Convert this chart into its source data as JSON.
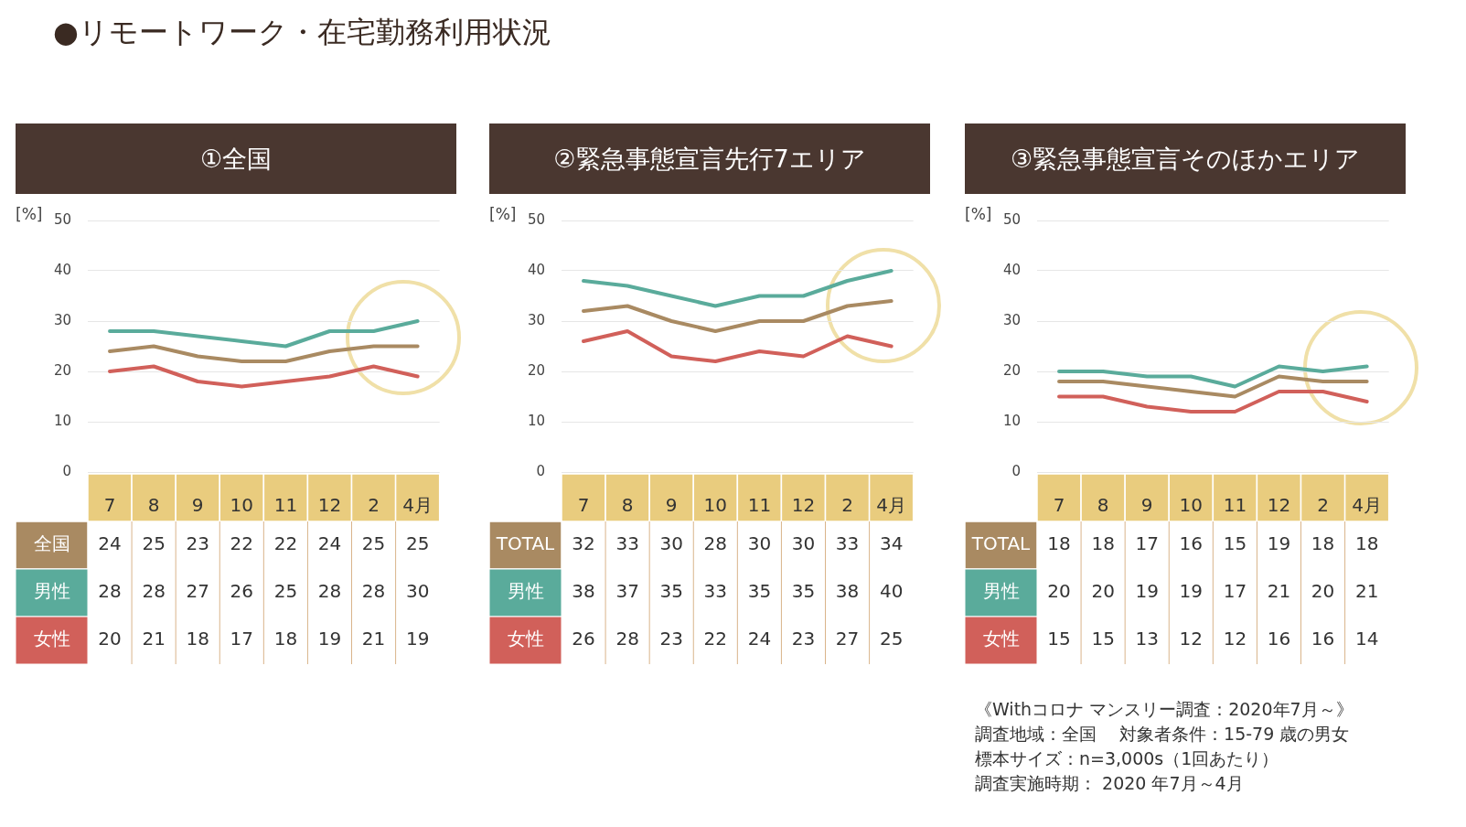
{
  "chart_data": [
    {
      "type": "line",
      "title": "①全国",
      "ylabel": "[%]",
      "categories": [
        "7",
        "8",
        "9",
        "10",
        "11",
        "12",
        "2",
        "4月"
      ],
      "ylim": [
        0,
        50
      ],
      "yticks": [
        0,
        10,
        20,
        30,
        40,
        50
      ],
      "grid": "y",
      "marker": "none",
      "data_labels": true,
      "annotations": [
        "●リモートワーク・在宅勤務利用状況"
      ],
      "series": [
        {
          "name": "全国",
          "color": "#a98a62",
          "values": [
            24,
            25,
            23,
            22,
            22,
            24,
            25,
            25
          ]
        },
        {
          "name": "男性",
          "color": "#5aab9b",
          "values": [
            28,
            28,
            27,
            26,
            25,
            28,
            28,
            30
          ]
        },
        {
          "name": "女性",
          "color": "#d1605a",
          "values": [
            20,
            21,
            18,
            17,
            18,
            19,
            21,
            19
          ]
        }
      ]
    },
    {
      "type": "line",
      "title": "②緊急事態宣言先行7エリア",
      "ylabel": "[%]",
      "categories": [
        "7",
        "8",
        "9",
        "10",
        "11",
        "12",
        "2",
        "4月"
      ],
      "ylim": [
        0,
        50
      ],
      "yticks": [
        0,
        10,
        20,
        30,
        40,
        50
      ],
      "grid": "y",
      "marker": "none",
      "data_labels": true,
      "series": [
        {
          "name": "TOTAL",
          "color": "#a98a62",
          "values": [
            32,
            33,
            30,
            28,
            30,
            30,
            33,
            34
          ]
        },
        {
          "name": "男性",
          "color": "#5aab9b",
          "values": [
            38,
            37,
            35,
            33,
            35,
            35,
            38,
            40
          ]
        },
        {
          "name": "女性",
          "color": "#d1605a",
          "values": [
            26,
            28,
            23,
            22,
            24,
            23,
            27,
            25
          ]
        }
      ]
    },
    {
      "type": "line",
      "title": "③緊急事態宣言そのほかエリア",
      "ylabel": "[%]",
      "categories": [
        "7",
        "8",
        "9",
        "10",
        "11",
        "12",
        "2",
        "4月"
      ],
      "ylim": [
        0,
        50
      ],
      "yticks": [
        0,
        10,
        20,
        30,
        40,
        50
      ],
      "grid": "y",
      "marker": "none",
      "data_labels": true,
      "annotations": [
        "《Withコロナ マンスリー調査：2020年7月～》",
        "調査地域：全国　 対象者条件：15-79 歳の男女",
        "標本サイズ：n=3,000s（1回あたり）",
        "調査実施時期： 2020 年7月～4月"
      ],
      "series": [
        {
          "name": "TOTAL",
          "color": "#a98a62",
          "values": [
            18,
            18,
            17,
            16,
            15,
            19,
            18,
            18
          ]
        },
        {
          "name": "男性",
          "color": "#5aab9b",
          "values": [
            20,
            20,
            19,
            19,
            17,
            21,
            20,
            21
          ]
        },
        {
          "name": "女性",
          "color": "#d1605a",
          "values": [
            15,
            15,
            13,
            12,
            12,
            16,
            16,
            14
          ]
        }
      ]
    }
  ]
}
